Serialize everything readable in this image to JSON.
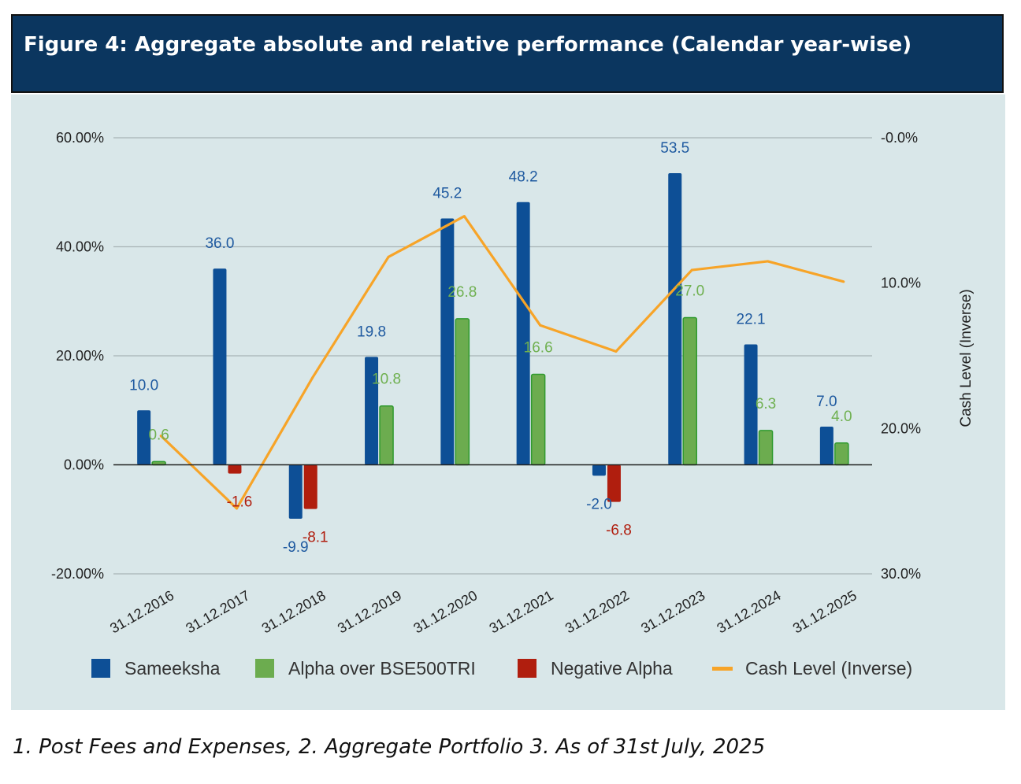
{
  "title": "Figure 4:  Aggregate absolute and relative performance (Calendar year-wise)",
  "footnote": "1. Post Fees and Expenses, 2. Aggregate Portfolio  3. As of 31st July, 2025",
  "colors": {
    "title_bg": "#0b365f",
    "plot_bg": "#d9e7e9",
    "sameeksha": "#0d4f96",
    "alpha": "#6cac4f",
    "alpha_border": "#2f9a2f",
    "negative_alpha": "#b01e0e",
    "cash": "#f7a428",
    "label_blue": "#1f5aa0",
    "label_green": "#6fb050",
    "label_red": "#b01e0e"
  },
  "chart_data": {
    "type": "bar",
    "categories": [
      "31.12.2016",
      "31.12.2017",
      "31.12.2018",
      "31.12.2019",
      "31.12.2020",
      "31.12.2021",
      "31.12.2022",
      "31.12.2023",
      "31.12.2024",
      "31.12.2025"
    ],
    "y_axis": {
      "range": [
        -20,
        60
      ],
      "ticks": [
        "60.00%",
        "40.00%",
        "20.00%",
        "0.00%",
        "-20.00%"
      ],
      "tick_values": [
        60,
        40,
        20,
        0,
        -20
      ]
    },
    "y2_axis": {
      "title": "Cash Level (Inverse)",
      "range": [
        0,
        30
      ],
      "inverted": true,
      "ticks": [
        "-0.0%",
        "10.0%",
        "20.0%",
        "30.0%"
      ],
      "tick_values": [
        0,
        10,
        20,
        30
      ]
    },
    "grid": true,
    "legend_position": "bottom",
    "legend": [
      "Sameeksha",
      "Alpha over BSE500TRI",
      "Negative Alpha",
      "Cash Level (Inverse)"
    ],
    "series": [
      {
        "name": "Sameeksha",
        "type": "bar",
        "values": [
          10.0,
          36.0,
          -9.9,
          19.8,
          45.2,
          48.2,
          -2.0,
          53.5,
          22.1,
          7.0
        ],
        "labels": [
          "10.0",
          "36.0",
          "-9.9",
          "19.8",
          "45.2",
          "48.2",
          "-2.0",
          "53.5",
          "22.1",
          "7.0"
        ]
      },
      {
        "name": "Alpha over BSE500TRI",
        "type": "bar",
        "values": [
          0.6,
          null,
          null,
          10.8,
          26.8,
          16.6,
          null,
          27.0,
          6.3,
          4.0
        ],
        "labels": [
          "0.6",
          "",
          "",
          "10.8",
          "26.8",
          "16.6",
          "",
          "27.0",
          "6.3",
          "4.0"
        ]
      },
      {
        "name": "Negative Alpha",
        "type": "bar",
        "values": [
          null,
          -1.6,
          -8.1,
          null,
          null,
          null,
          -6.8,
          null,
          null,
          null
        ],
        "labels": [
          "",
          "-1.6",
          "-8.1",
          "",
          "",
          "",
          "-6.8",
          "",
          "",
          ""
        ]
      },
      {
        "name": "Cash Level (Inverse)",
        "type": "line",
        "axis": "right",
        "values": [
          20.5,
          25.5,
          16.5,
          8.2,
          5.4,
          12.9,
          14.7,
          9.1,
          8.5,
          9.9
        ]
      }
    ]
  }
}
